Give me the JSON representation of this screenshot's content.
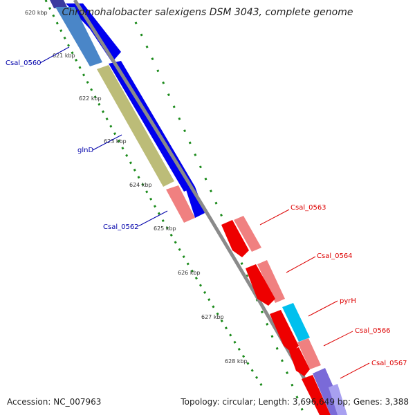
{
  "title": "Chromohalobacter salexigens DSM 3043, complete genome",
  "footer": {
    "accession": "Accession: NC_007963",
    "summary": "Topology: circular; Length: 3,696,649 bp; Genes: 3,388"
  },
  "colors": {
    "backbone": "#8a8a8a",
    "tick": "#1a8a1a",
    "forward_cds": "#0000ee",
    "reverse_cds": "#ee0000",
    "forward_label": "#0000aa",
    "reverse_label": "#dd0000"
  },
  "ticks": [
    "620 kbp",
    "621 kbp",
    "622 kbp",
    "623 kbp",
    "624 kbp",
    "625 kbp",
    "626 kbp",
    "627 kbp",
    "628 kbp"
  ],
  "forward_labels": [
    "Csal_0560",
    "glnD",
    "Csal_0562"
  ],
  "reverse_labels": [
    "Csal_0563",
    "Csal_0564",
    "pyrH",
    "Csal_0566",
    "Csal_0567"
  ]
}
